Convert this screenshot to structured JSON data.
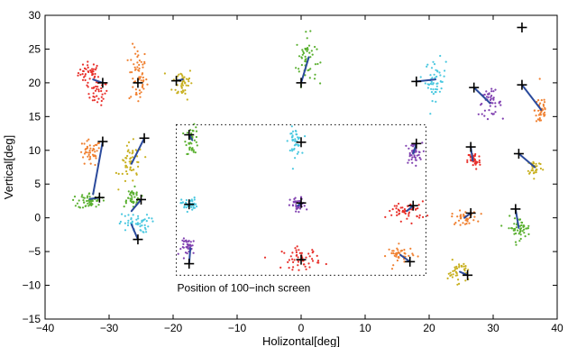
{
  "chart_data": {
    "type": "scatter",
    "title": "",
    "xlabel": "Holizontal[deg]",
    "ylabel": "Vertical[deg]",
    "xlim": [
      -40,
      40
    ],
    "ylim": [
      -15,
      30
    ],
    "xticks": [
      -40,
      -30,
      -20,
      -10,
      0,
      10,
      20,
      30,
      40
    ],
    "yticks": [
      -15,
      -10,
      -5,
      0,
      5,
      10,
      15,
      20,
      25,
      30
    ],
    "grid": false,
    "annotation": "Position of 100−inch screen",
    "screen_region": {
      "x": [
        -19.5,
        19.5
      ],
      "y": [
        -8.5,
        13.8
      ]
    },
    "targets": [
      [
        -31,
        20
      ],
      [
        -25.5,
        20
      ],
      [
        -19.5,
        20.3
      ],
      [
        0,
        20
      ],
      [
        18,
        20.2
      ],
      [
        27,
        19.3
      ],
      [
        34.5,
        19.7
      ],
      [
        34.5,
        28.2
      ],
      [
        -31,
        11.3
      ],
      [
        -24.5,
        11.8
      ],
      [
        -17.5,
        12.3
      ],
      [
        0,
        11.2
      ],
      [
        18,
        11
      ],
      [
        26.5,
        10.5
      ],
      [
        34,
        9.5
      ],
      [
        -31.5,
        3
      ],
      [
        -25,
        2.7
      ],
      [
        -17.5,
        2
      ],
      [
        0,
        2.2
      ],
      [
        17.5,
        1.8
      ],
      [
        26.5,
        0.7
      ],
      [
        33.5,
        1.3
      ],
      [
        -25.5,
        -3.2
      ],
      [
        -17.5,
        -6.8
      ],
      [
        0,
        -6.2
      ],
      [
        17,
        -6.5
      ],
      [
        26,
        -8.5
      ]
    ],
    "series": [
      {
        "color": "#e8302b",
        "center": [
          -33,
          21.5
        ],
        "spread": [
          0.9,
          0.8
        ],
        "n": 40
      },
      {
        "color": "#e8302b",
        "center": [
          -31.8,
          18.5
        ],
        "spread": [
          0.8,
          0.9
        ],
        "n": 35
      },
      {
        "color": "#f08030",
        "center": [
          -25.5,
          21
        ],
        "spread": [
          0.7,
          2.2
        ],
        "n": 60
      },
      {
        "color": "#c8b020",
        "center": [
          -18.5,
          20
        ],
        "spread": [
          0.8,
          1.2
        ],
        "n": 45
      },
      {
        "color": "#5ab030",
        "center": [
          0.8,
          23.5
        ],
        "spread": [
          0.8,
          1.8
        ],
        "n": 55
      },
      {
        "color": "#4ac8e0",
        "center": [
          21,
          20.5
        ],
        "spread": [
          0.8,
          1.5
        ],
        "n": 50
      },
      {
        "color": "#8040b0",
        "center": [
          29.5,
          17
        ],
        "spread": [
          0.9,
          0.9
        ],
        "n": 45
      },
      {
        "color": "#f08030",
        "center": [
          37.5,
          16
        ],
        "spread": [
          0.5,
          1.4
        ],
        "n": 40
      },
      {
        "color": "#f08030",
        "center": [
          -33,
          9.5
        ],
        "spread": [
          0.9,
          1.0
        ],
        "n": 45
      },
      {
        "color": "#c8b020",
        "center": [
          -26.5,
          8
        ],
        "spread": [
          0.9,
          1.5
        ],
        "n": 50
      },
      {
        "color": "#5ab030",
        "center": [
          -17,
          11.5
        ],
        "spread": [
          0.5,
          1.0
        ],
        "n": 40
      },
      {
        "color": "#4ac8e0",
        "center": [
          -1,
          11.3
        ],
        "spread": [
          0.5,
          1.0
        ],
        "n": 45
      },
      {
        "color": "#8040b0",
        "center": [
          17.5,
          9.5
        ],
        "spread": [
          0.7,
          0.8
        ],
        "n": 40
      },
      {
        "color": "#e8302b",
        "center": [
          27,
          8.5
        ],
        "spread": [
          0.5,
          0.7
        ],
        "n": 40
      },
      {
        "color": "#c8b020",
        "center": [
          36.5,
          7.5
        ],
        "spread": [
          0.6,
          0.6
        ],
        "n": 35
      },
      {
        "color": "#5ab030",
        "center": [
          -33,
          2.5
        ],
        "spread": [
          0.9,
          0.6
        ],
        "n": 55
      },
      {
        "color": "#5ab030",
        "center": [
          -26.5,
          3
        ],
        "spread": [
          0.8,
          0.7
        ],
        "n": 40
      },
      {
        "color": "#4ac8e0",
        "center": [
          -26,
          -0.8
        ],
        "spread": [
          1.2,
          0.7
        ],
        "n": 50
      },
      {
        "color": "#4ac8e0",
        "center": [
          -17.5,
          2
        ],
        "spread": [
          0.6,
          0.5
        ],
        "n": 40
      },
      {
        "color": "#8040b0",
        "center": [
          -0.5,
          1.8
        ],
        "spread": [
          0.6,
          0.6
        ],
        "n": 40
      },
      {
        "color": "#e8302b",
        "center": [
          16.5,
          1
        ],
        "spread": [
          1.5,
          0.7
        ],
        "n": 50
      },
      {
        "color": "#f08030",
        "center": [
          25.5,
          0
        ],
        "spread": [
          1.0,
          0.5
        ],
        "n": 40
      },
      {
        "color": "#5ab030",
        "center": [
          34,
          -1.5
        ],
        "spread": [
          0.9,
          0.8
        ],
        "n": 50
      },
      {
        "color": "#8040b0",
        "center": [
          -17.5,
          -4.3
        ],
        "spread": [
          0.6,
          0.6
        ],
        "n": 40
      },
      {
        "color": "#e8302b",
        "center": [
          0,
          -6
        ],
        "spread": [
          1.5,
          0.8
        ],
        "n": 55
      },
      {
        "color": "#f08030",
        "center": [
          15.5,
          -5.5
        ],
        "spread": [
          1.0,
          0.7
        ],
        "n": 40
      },
      {
        "color": "#c8b020",
        "center": [
          24.5,
          -8
        ],
        "spread": [
          0.8,
          0.8
        ],
        "n": 40
      }
    ],
    "links": [
      [
        [
          -31,
          20
        ],
        [
          -32.5,
          20.5
        ]
      ],
      [
        [
          -31,
          11.3
        ],
        [
          -32.5,
          3.5
        ]
      ],
      [
        [
          -31.5,
          3
        ],
        [
          -33,
          2.8
        ]
      ],
      [
        [
          -24.5,
          11.8
        ],
        [
          -26.5,
          8
        ]
      ],
      [
        [
          -25,
          2.7
        ],
        [
          -26.5,
          1
        ]
      ],
      [
        [
          -25.5,
          -3.2
        ],
        [
          -26.5,
          -1
        ]
      ],
      [
        [
          -19.5,
          20.3
        ],
        [
          -18.5,
          20.5
        ]
      ],
      [
        [
          -17.5,
          12.3
        ],
        [
          -17,
          11.5
        ]
      ],
      [
        [
          -17.5,
          -6.8
        ],
        [
          -17.3,
          -4.5
        ]
      ],
      [
        [
          0,
          20
        ],
        [
          1.2,
          23.8
        ]
      ],
      [
        [
          0,
          2.2
        ],
        [
          -0.5,
          1.8
        ]
      ],
      [
        [
          18,
          20.2
        ],
        [
          21,
          20.5
        ]
      ],
      [
        [
          18,
          11
        ],
        [
          17.5,
          9.5
        ]
      ],
      [
        [
          17.5,
          1.8
        ],
        [
          16.5,
          1
        ]
      ],
      [
        [
          17,
          -6.5
        ],
        [
          15.5,
          -5.5
        ]
      ],
      [
        [
          27,
          19.3
        ],
        [
          29.5,
          17
        ]
      ],
      [
        [
          26.5,
          10.5
        ],
        [
          26.8,
          8.5
        ]
      ],
      [
        [
          26.5,
          0.7
        ],
        [
          25.5,
          0
        ]
      ],
      [
        [
          26,
          -8.5
        ],
        [
          24.8,
          -8
        ]
      ],
      [
        [
          34.5,
          19.7
        ],
        [
          37.5,
          16
        ]
      ],
      [
        [
          34,
          9.5
        ],
        [
          36.5,
          7.5
        ]
      ],
      [
        [
          33.5,
          1.3
        ],
        [
          34,
          -1.5
        ]
      ]
    ]
  }
}
